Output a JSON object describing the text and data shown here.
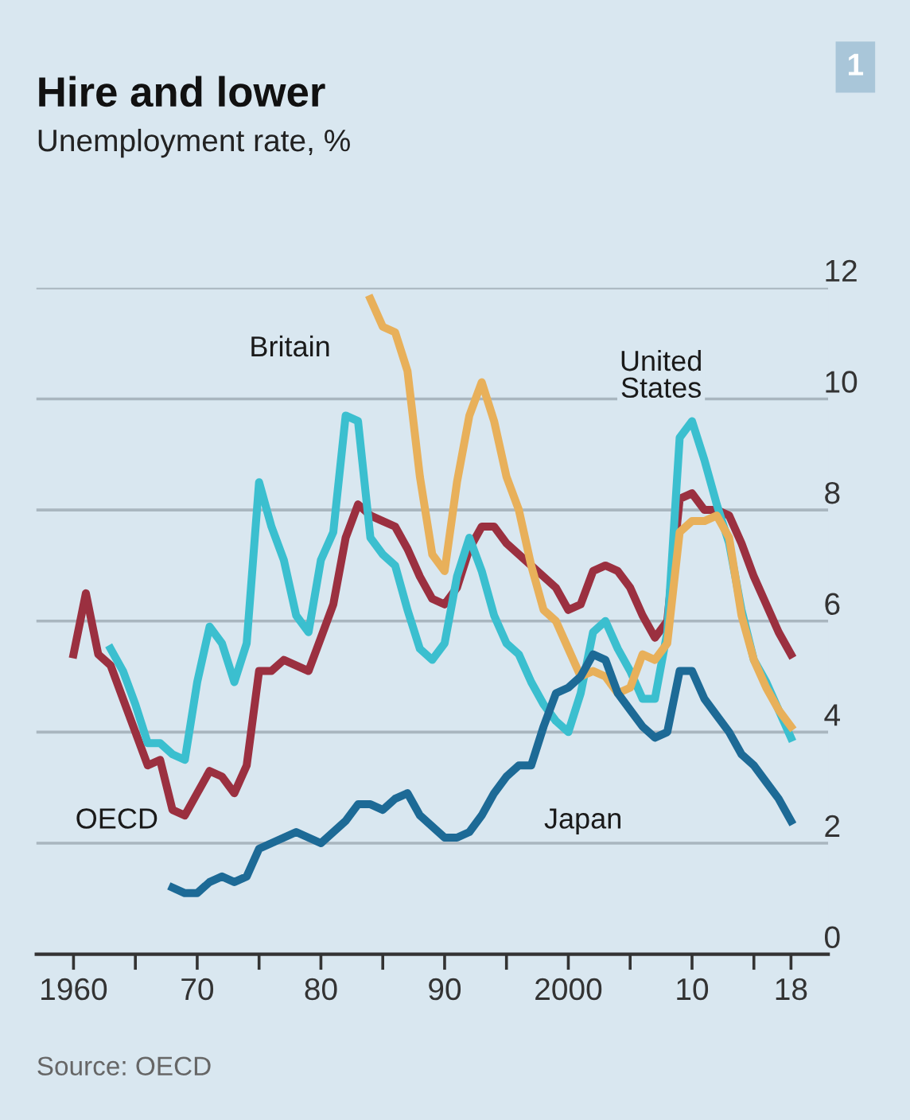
{
  "chart_data": {
    "type": "line",
    "title": "Hire and lower",
    "subtitle": "Unemployment rate, %",
    "annotations": [
      "1",
      "Source: OECD"
    ],
    "series": [
      {
        "name": "OECD",
        "color": "#9b3040",
        "x": [
          1960,
          1961,
          1962,
          1963,
          1964,
          1965,
          1966,
          1967,
          1968,
          1969,
          1970,
          1971,
          1972,
          1973,
          1974,
          1975,
          1976,
          1977,
          1978,
          1979,
          1980,
          1981,
          1982,
          1983,
          1984,
          1985,
          1986,
          1987,
          1988,
          1989,
          1990,
          1991,
          1992,
          1993,
          1994,
          1995,
          1996,
          1997,
          1998,
          1999,
          2000,
          2001,
          2002,
          2003,
          2004,
          2005,
          2006,
          2007,
          2008,
          2009,
          2010,
          2011,
          2012,
          2013,
          2014,
          2015,
          2016,
          2017,
          2018
        ],
        "values": [
          5.4,
          6.5,
          5.4,
          5.2,
          4.6,
          4.0,
          3.4,
          3.5,
          2.6,
          2.5,
          2.9,
          3.3,
          3.2,
          2.9,
          3.4,
          5.1,
          5.1,
          5.3,
          5.2,
          5.1,
          5.7,
          6.3,
          7.5,
          8.1,
          7.9,
          7.8,
          7.7,
          7.3,
          6.8,
          6.4,
          6.3,
          6.6,
          7.3,
          7.7,
          7.7,
          7.4,
          7.2,
          7.0,
          6.8,
          6.6,
          6.2,
          6.3,
          6.9,
          7.0,
          6.9,
          6.6,
          6.1,
          5.7,
          6.0,
          8.2,
          8.3,
          8.0,
          8.0,
          7.9,
          7.4,
          6.8,
          6.3,
          5.8,
          5.4
        ]
      },
      {
        "name": "United States",
        "color": "#3bbfcf",
        "x": [
          1963,
          1964,
          1965,
          1966,
          1967,
          1968,
          1969,
          1970,
          1971,
          1972,
          1973,
          1974,
          1975,
          1976,
          1977,
          1978,
          1979,
          1980,
          1981,
          1982,
          1983,
          1984,
          1985,
          1986,
          1987,
          1988,
          1989,
          1990,
          1991,
          1992,
          1993,
          1994,
          1995,
          1996,
          1997,
          1998,
          1999,
          2000,
          2001,
          2002,
          2003,
          2004,
          2005,
          2006,
          2007,
          2008,
          2009,
          2010,
          2011,
          2012,
          2013,
          2014,
          2015,
          2016,
          2017,
          2018
        ],
        "values": [
          5.5,
          5.1,
          4.5,
          3.8,
          3.8,
          3.6,
          3.5,
          4.9,
          5.9,
          5.6,
          4.9,
          5.6,
          8.5,
          7.7,
          7.1,
          6.1,
          5.8,
          7.1,
          7.6,
          9.7,
          9.6,
          7.5,
          7.2,
          7.0,
          6.2,
          5.5,
          5.3,
          5.6,
          6.8,
          7.5,
          6.9,
          6.1,
          5.6,
          5.4,
          4.9,
          4.5,
          4.2,
          4.0,
          4.7,
          5.8,
          6.0,
          5.5,
          5.1,
          4.6,
          4.6,
          5.8,
          9.3,
          9.6,
          8.9,
          8.1,
          7.4,
          6.2,
          5.3,
          4.9,
          4.4,
          3.9
        ]
      },
      {
        "name": "Britain",
        "color": "#e8b05a",
        "x": [
          1984,
          1985,
          1986,
          1987,
          1988,
          1989,
          1990,
          1991,
          1992,
          1993,
          1994,
          1995,
          1996,
          1997,
          1998,
          1999,
          2000,
          2001,
          2002,
          2003,
          2004,
          2005,
          2006,
          2007,
          2008,
          2009,
          2010,
          2011,
          2012,
          2013,
          2014,
          2015,
          2016,
          2017,
          2018
        ],
        "values": [
          11.8,
          11.3,
          11.2,
          10.5,
          8.6,
          7.2,
          6.9,
          8.5,
          9.7,
          10.3,
          9.6,
          8.6,
          8.0,
          7.0,
          6.2,
          6.0,
          5.5,
          5.0,
          5.1,
          5.0,
          4.7,
          4.8,
          5.4,
          5.3,
          5.6,
          7.6,
          7.8,
          7.8,
          7.9,
          7.5,
          6.1,
          5.3,
          4.8,
          4.4,
          4.1
        ]
      },
      {
        "name": "Japan",
        "color": "#1d6a96",
        "x": [
          1968,
          1969,
          1970,
          1971,
          1972,
          1973,
          1974,
          1975,
          1976,
          1977,
          1978,
          1979,
          1980,
          1981,
          1982,
          1983,
          1984,
          1985,
          1986,
          1987,
          1988,
          1989,
          1990,
          1991,
          1992,
          1993,
          1994,
          1995,
          1996,
          1997,
          1998,
          1999,
          2000,
          2001,
          2002,
          2003,
          2004,
          2005,
          2006,
          2007,
          2008,
          2009,
          2010,
          2011,
          2012,
          2013,
          2014,
          2015,
          2016,
          2017,
          2018
        ],
        "values": [
          1.2,
          1.1,
          1.1,
          1.3,
          1.4,
          1.3,
          1.4,
          1.9,
          2.0,
          2.1,
          2.2,
          2.1,
          2.0,
          2.2,
          2.4,
          2.7,
          2.7,
          2.6,
          2.8,
          2.9,
          2.5,
          2.3,
          2.1,
          2.1,
          2.2,
          2.5,
          2.9,
          3.2,
          3.4,
          3.4,
          4.1,
          4.7,
          4.8,
          5.0,
          5.4,
          5.3,
          4.7,
          4.4,
          4.1,
          3.9,
          4.0,
          5.1,
          5.1,
          4.6,
          4.3,
          4.0,
          3.6,
          3.4,
          3.1,
          2.8,
          2.4
        ]
      }
    ],
    "xlim": [
      1957,
      2021
    ],
    "xticks": [
      {
        "value": 1960,
        "label": "1960"
      },
      {
        "value": 1965,
        "label": null
      },
      {
        "value": 1970,
        "label": "70"
      },
      {
        "value": 1975,
        "label": null
      },
      {
        "value": 1980,
        "label": "80"
      },
      {
        "value": 1985,
        "label": null
      },
      {
        "value": 1990,
        "label": "90"
      },
      {
        "value": 1995,
        "label": null
      },
      {
        "value": 2000,
        "label": "2000"
      },
      {
        "value": 2005,
        "label": null
      },
      {
        "value": 2010,
        "label": "10"
      },
      {
        "value": 2015,
        "label": null
      },
      {
        "value": 2018,
        "label": "18"
      }
    ],
    "ylim": [
      0,
      12
    ],
    "yticks": [
      0,
      2,
      4,
      6,
      8,
      10,
      12
    ],
    "grid": "y",
    "legend": false,
    "line_style": "solid",
    "marker": "none"
  }
}
